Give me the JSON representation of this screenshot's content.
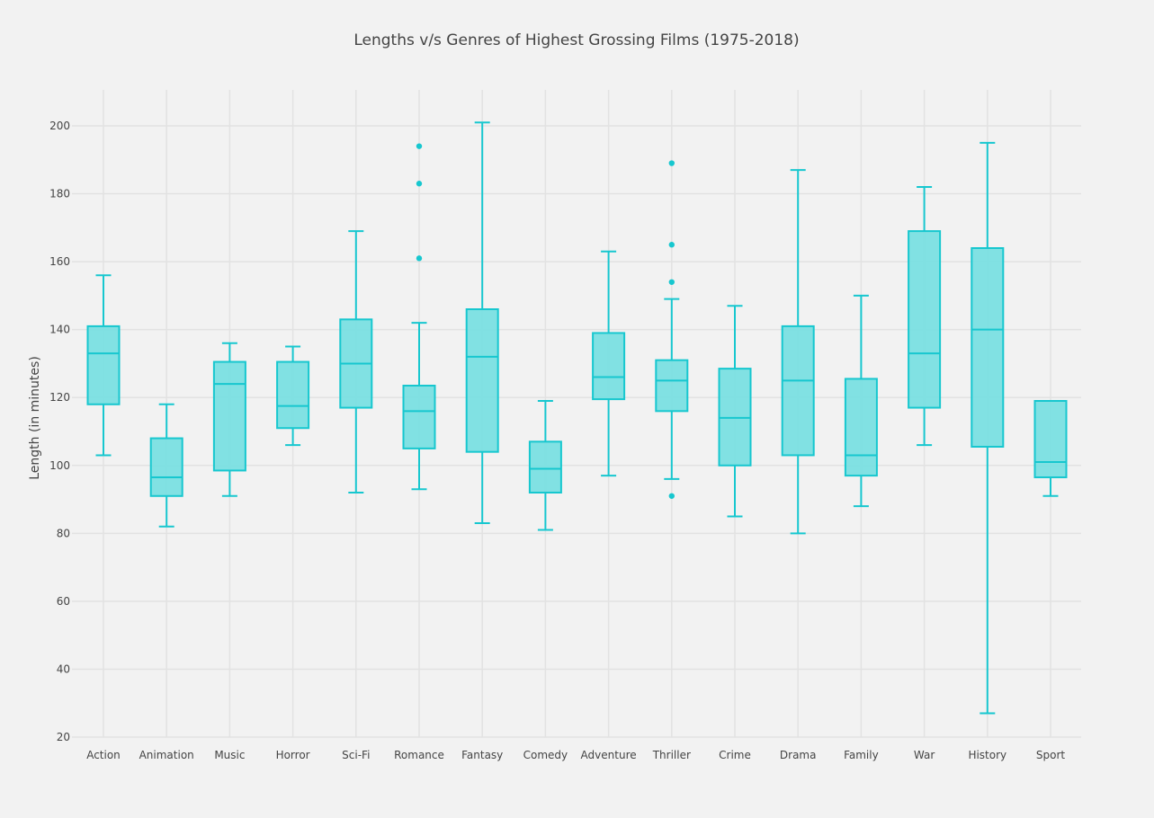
{
  "chart_data": {
    "type": "box",
    "title": "Lengths v/s Genres of Highest Grossing Films (1975-2018)",
    "xlabel": "",
    "ylabel": "Length (in minutes)",
    "ylim": [
      20,
      210
    ],
    "yticks": [
      20,
      40,
      60,
      80,
      100,
      120,
      140,
      160,
      180,
      200
    ],
    "grid": true,
    "color": "#17c7cf",
    "fill_color": "#7adfe2",
    "categories": [
      "Action",
      "Animation",
      "Music",
      "Horror",
      "Sci-Fi",
      "Romance",
      "Fantasy",
      "Comedy",
      "Adventure",
      "Thriller",
      "Crime",
      "Drama",
      "Family",
      "War",
      "History",
      "Sport"
    ],
    "boxes": [
      {
        "category": "Action",
        "min": 103,
        "q1": 118,
        "median": 133,
        "q3": 141,
        "max": 156,
        "outliers": []
      },
      {
        "category": "Animation",
        "min": 82,
        "q1": 91,
        "median": 96.5,
        "q3": 108,
        "max": 118,
        "outliers": []
      },
      {
        "category": "Music",
        "min": 91,
        "q1": 98.5,
        "median": 124,
        "q3": 130.5,
        "max": 136,
        "outliers": []
      },
      {
        "category": "Horror",
        "min": 106,
        "q1": 111,
        "median": 117.5,
        "q3": 130.5,
        "max": 135,
        "outliers": []
      },
      {
        "category": "Sci-Fi",
        "min": 92,
        "q1": 117,
        "median": 130,
        "q3": 143,
        "max": 169,
        "outliers": []
      },
      {
        "category": "Romance",
        "min": 93,
        "q1": 105,
        "median": 116,
        "q3": 123.5,
        "max": 142,
        "outliers": [
          161,
          183,
          194
        ]
      },
      {
        "category": "Fantasy",
        "min": 83,
        "q1": 104,
        "median": 132,
        "q3": 146,
        "max": 201,
        "outliers": []
      },
      {
        "category": "Comedy",
        "min": 81,
        "q1": 92,
        "median": 99,
        "q3": 107,
        "max": 119,
        "outliers": []
      },
      {
        "category": "Adventure",
        "min": 97,
        "q1": 119.5,
        "median": 126,
        "q3": 139,
        "max": 163,
        "outliers": []
      },
      {
        "category": "Thriller",
        "min": 96,
        "q1": 116,
        "median": 125,
        "q3": 131,
        "max": 149,
        "outliers": [
          91,
          154,
          165,
          189
        ]
      },
      {
        "category": "Crime",
        "min": 85,
        "q1": 100,
        "median": 114,
        "q3": 128.5,
        "max": 147,
        "outliers": []
      },
      {
        "category": "Drama",
        "min": 80,
        "q1": 103,
        "median": 125,
        "q3": 141,
        "max": 187,
        "outliers": []
      },
      {
        "category": "Family",
        "min": 88,
        "q1": 97,
        "median": 103,
        "q3": 125.5,
        "max": 150,
        "outliers": []
      },
      {
        "category": "War",
        "min": 106,
        "q1": 117,
        "median": 133,
        "q3": 169,
        "max": 182,
        "outliers": []
      },
      {
        "category": "History",
        "min": 27,
        "q1": 105.5,
        "median": 140,
        "q3": 164,
        "max": 195,
        "outliers": []
      },
      {
        "category": "Sport",
        "min": 91,
        "q1": 96.5,
        "median": 101,
        "q3": 119,
        "max": 119,
        "outliers": []
      }
    ]
  }
}
